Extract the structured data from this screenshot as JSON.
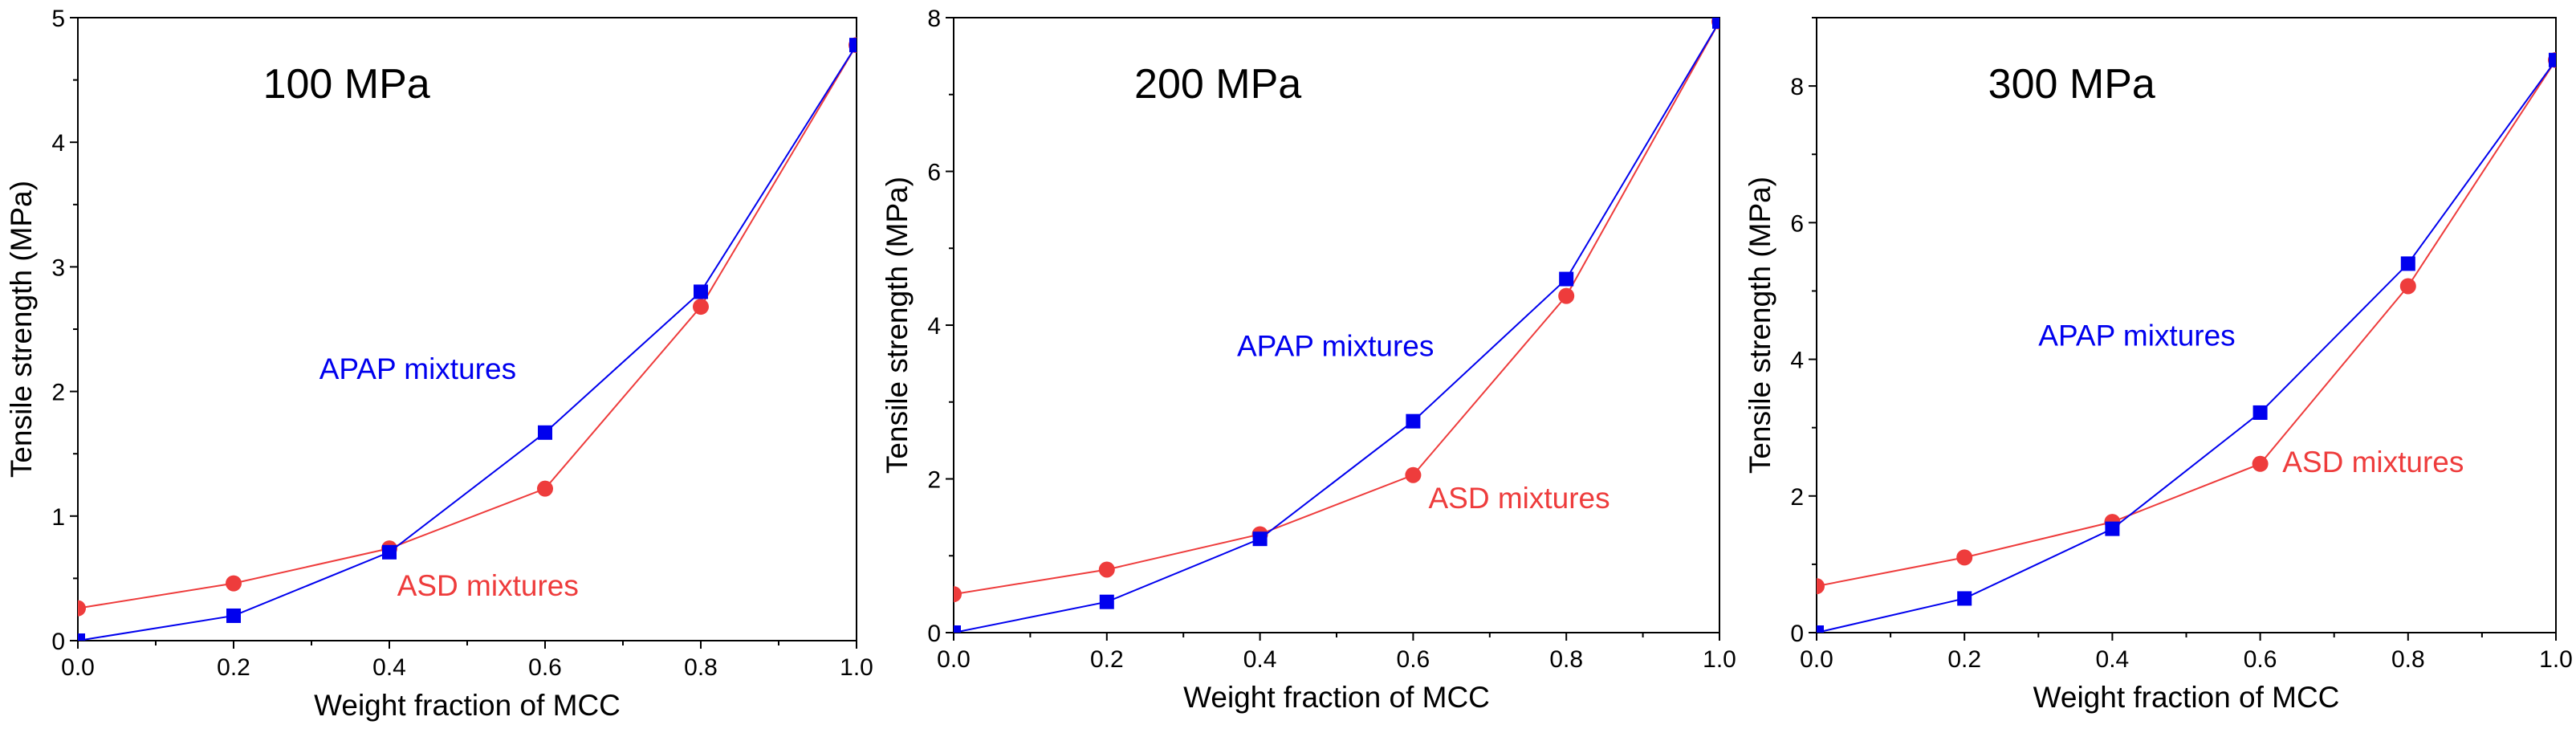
{
  "series_colors": {
    "APAP": "#0000ee",
    "ASD": "#ee3c3c"
  },
  "chart_data": [
    {
      "type": "line",
      "title": "100 MPa",
      "xlabel": "Weight fraction of MCC",
      "ylabel": "Tensile strength (MPa)",
      "xlim": [
        0,
        1
      ],
      "ylim": [
        0,
        5
      ],
      "xticks": [
        "0.0",
        "0.2",
        "0.4",
        "0.6",
        "0.8",
        "1.0"
      ],
      "yticks": [
        "0",
        "1",
        "2",
        "3",
        "4",
        "5"
      ],
      "x": [
        0.0,
        0.2,
        0.4,
        0.6,
        0.8,
        1.0
      ],
      "series": [
        {
          "name": "APAP mixtures",
          "marker": "square",
          "values": [
            0.0,
            0.2,
            0.71,
            1.67,
            2.8,
            4.78
          ]
        },
        {
          "name": "ASD mixtures",
          "marker": "circle",
          "values": [
            0.26,
            0.46,
            0.74,
            1.22,
            2.68,
            4.78
          ]
        }
      ],
      "annotations": [
        {
          "text": "APAP mixtures",
          "series": "APAP",
          "x": 0.31,
          "y": 2.1
        },
        {
          "text": "ASD mixtures",
          "series": "ASD",
          "x": 0.41,
          "y": 0.36
        }
      ]
    },
    {
      "type": "line",
      "title": "200 MPa",
      "xlabel": "Weight fraction of MCC",
      "ylabel": "Tensile strength (MPa)",
      "xlim": [
        0,
        1
      ],
      "ylim": [
        0,
        8
      ],
      "xticks": [
        "0.0",
        "0.2",
        "0.4",
        "0.6",
        "0.8",
        "1.0"
      ],
      "yticks": [
        "0",
        "2",
        "4",
        "6",
        "8"
      ],
      "x": [
        0.0,
        0.2,
        0.4,
        0.6,
        0.8,
        1.0
      ],
      "series": [
        {
          "name": "APAP mixtures",
          "marker": "square",
          "values": [
            0.0,
            0.4,
            1.22,
            2.75,
            4.6,
            7.95
          ]
        },
        {
          "name": "ASD mixtures",
          "marker": "circle",
          "values": [
            0.5,
            0.82,
            1.28,
            2.05,
            4.38,
            7.95
          ]
        }
      ],
      "annotations": [
        {
          "text": "APAP mixtures",
          "series": "APAP",
          "x": 0.37,
          "y": 3.6
        },
        {
          "text": "ASD mixtures",
          "series": "ASD",
          "x": 0.62,
          "y": 1.62
        }
      ]
    },
    {
      "type": "line",
      "title": "300 MPa",
      "xlabel": "Weight fraction of MCC",
      "ylabel": "Tensile strength (MPa)",
      "xlim": [
        0,
        1
      ],
      "ylim": [
        0,
        9
      ],
      "xticks": [
        "0.0",
        "0.2",
        "0.4",
        "0.6",
        "0.8",
        "1.0"
      ],
      "yticks": [
        "0",
        "2",
        "4",
        "6",
        "8"
      ],
      "x": [
        0.0,
        0.2,
        0.4,
        0.6,
        0.8,
        1.0
      ],
      "series": [
        {
          "name": "APAP mixtures",
          "marker": "square",
          "values": [
            0.0,
            0.5,
            1.52,
            3.22,
            5.4,
            8.38
          ]
        },
        {
          "name": "ASD mixtures",
          "marker": "circle",
          "values": [
            0.68,
            1.1,
            1.62,
            2.47,
            5.07,
            8.38
          ]
        }
      ],
      "annotations": [
        {
          "text": "APAP mixtures",
          "series": "APAP",
          "x": 0.3,
          "y": 4.2
        },
        {
          "text": "ASD mixtures",
          "series": "ASD",
          "x": 0.63,
          "y": 2.35
        }
      ]
    }
  ]
}
